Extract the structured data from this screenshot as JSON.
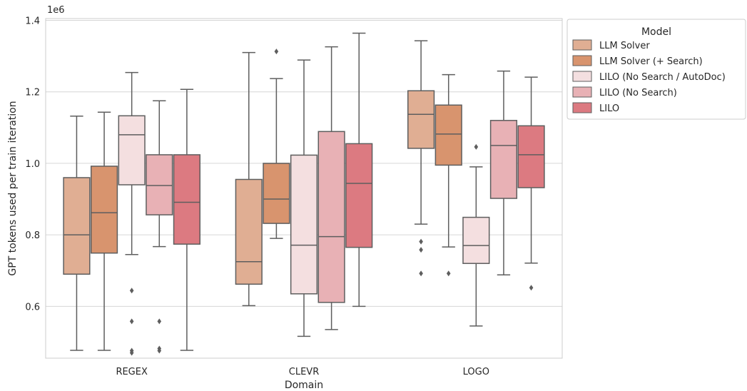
{
  "chart_data": {
    "type": "box",
    "xlabel": "Domain",
    "ylabel": "GPT tokens used per train iteration",
    "y_offset_label": "1e6",
    "ylim": [
      0.455,
      1.405
    ],
    "y_ticks": [
      0.6,
      0.8,
      1.0,
      1.2,
      1.4
    ],
    "y_tick_labels": [
      "0.6",
      "0.8",
      "1.0",
      "1.2",
      "1.4"
    ],
    "grid": true,
    "legend_position": "outside-right-top",
    "legend_title": "Model",
    "categories": [
      "REGEX",
      "CLEVR",
      "LOGO"
    ],
    "series": [
      {
        "name": "LLM Solver",
        "color": "#e0ae93",
        "boxes": [
          {
            "whislo": 0.477,
            "q1": 0.69,
            "med": 0.8,
            "q3": 0.96,
            "whishi": 1.132,
            "fliers": []
          },
          {
            "whislo": 0.602,
            "q1": 0.662,
            "med": 0.725,
            "q3": 0.955,
            "whishi": 1.31,
            "fliers": []
          },
          {
            "whislo": 0.83,
            "q1": 1.042,
            "med": 1.137,
            "q3": 1.203,
            "whishi": 1.343,
            "fliers": [
              0.781,
              0.758,
              0.692
            ]
          }
        ]
      },
      {
        "name": "LLM Solver (+ Search)",
        "color": "#d8946e",
        "boxes": [
          {
            "whislo": 0.477,
            "q1": 0.749,
            "med": 0.862,
            "q3": 0.992,
            "whishi": 1.143,
            "fliers": []
          },
          {
            "whislo": 0.79,
            "q1": 0.832,
            "med": 0.9,
            "q3": 1.0,
            "whishi": 1.237,
            "fliers": [
              1.313
            ]
          },
          {
            "whislo": 0.766,
            "q1": 0.995,
            "med": 1.082,
            "q3": 1.163,
            "whishi": 1.248,
            "fliers": [
              0.692
            ]
          }
        ]
      },
      {
        "name": "LILO (No Search / AutoDoc)",
        "color": "#f4dfe0",
        "boxes": [
          {
            "whislo": 0.745,
            "q1": 0.94,
            "med": 1.08,
            "q3": 1.133,
            "whishi": 1.254,
            "fliers": [
              0.644,
              0.558,
              0.476,
              0.47
            ]
          },
          {
            "whislo": 0.516,
            "q1": 0.635,
            "med": 0.771,
            "q3": 1.023,
            "whishi": 1.289,
            "fliers": []
          },
          {
            "whislo": 0.545,
            "q1": 0.72,
            "med": 0.77,
            "q3": 0.849,
            "whishi": 0.99,
            "fliers": [
              1.046
            ]
          }
        ]
      },
      {
        "name": "LILO (No Search)",
        "color": "#e8b1b5",
        "boxes": [
          {
            "whislo": 0.767,
            "q1": 0.856,
            "med": 0.938,
            "q3": 1.024,
            "whishi": 1.175,
            "fliers": [
              0.558,
              0.482,
              0.476
            ]
          },
          {
            "whislo": 0.535,
            "q1": 0.611,
            "med": 0.795,
            "q3": 1.089,
            "whishi": 1.326,
            "fliers": []
          },
          {
            "whislo": 0.688,
            "q1": 0.902,
            "med": 1.05,
            "q3": 1.12,
            "whishi": 1.258,
            "fliers": []
          }
        ]
      },
      {
        "name": "LILO",
        "color": "#dc7a81",
        "boxes": [
          {
            "whislo": 0.477,
            "q1": 0.774,
            "med": 0.891,
            "q3": 1.024,
            "whishi": 1.207,
            "fliers": []
          },
          {
            "whislo": 0.6,
            "q1": 0.765,
            "med": 0.944,
            "q3": 1.055,
            "whishi": 1.364,
            "fliers": []
          },
          {
            "whislo": 0.721,
            "q1": 0.932,
            "med": 1.024,
            "q3": 1.105,
            "whishi": 1.241,
            "fliers": [
              0.652
            ]
          }
        ]
      }
    ]
  }
}
